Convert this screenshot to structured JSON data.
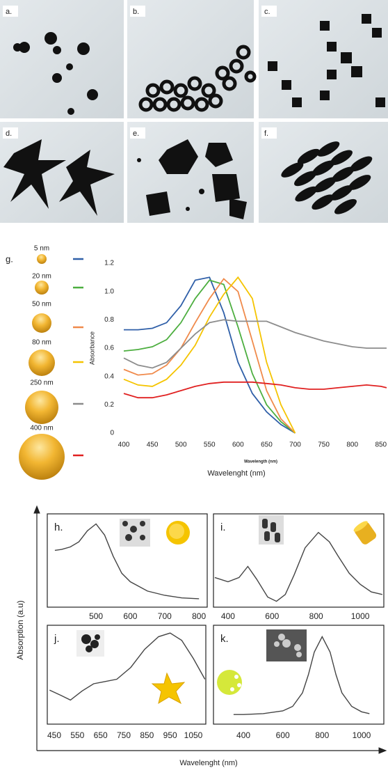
{
  "tem_panels": [
    "a.",
    "b.",
    "c.",
    "d.",
    "e.",
    "f."
  ],
  "figure": {
    "y_label": "Absorption (a.u)",
    "x_label": "Wavelenght (nm)"
  },
  "chart_data": [
    {
      "type": "line",
      "title": "g.",
      "x_label": "Wavelenght (nm)",
      "annotation": "Wavelength (nm)",
      "y_label": "Absorbance",
      "x": [
        400,
        425,
        450,
        475,
        500,
        525,
        550,
        575,
        600,
        625,
        650,
        675,
        700,
        725,
        750,
        775,
        800,
        825,
        850,
        860
      ],
      "xlim": [
        400,
        860
      ],
      "xticks": [
        400,
        450,
        500,
        550,
        600,
        650,
        700,
        750,
        800,
        850
      ],
      "ylim": [
        0,
        1.2
      ],
      "yticks": [
        0,
        0.2,
        0.4,
        0.6,
        0.8,
        {
          "value": 1,
          "label": "1.0"
        },
        1.2
      ],
      "series": [
        {
          "name": "5 nm",
          "color": "#2f5fa8",
          "values": [
            0.73,
            0.73,
            0.74,
            0.78,
            0.9,
            1.08,
            1.1,
            0.85,
            0.5,
            0.28,
            0.15,
            0.06,
            0,
            null,
            null,
            null,
            null,
            null,
            null,
            null
          ]
        },
        {
          "name": "20 nm",
          "color": "#4cae3f",
          "values": [
            0.58,
            0.59,
            0.61,
            0.66,
            0.78,
            0.95,
            1.08,
            1.05,
            0.75,
            0.42,
            0.2,
            0.08,
            0,
            null,
            null,
            null,
            null,
            null,
            null,
            null
          ]
        },
        {
          "name": "50 nm",
          "color": "#f08a4b",
          "values": [
            0.45,
            0.41,
            0.42,
            0.48,
            0.6,
            0.78,
            0.95,
            1.09,
            1.0,
            0.65,
            0.3,
            0.1,
            0,
            null,
            null,
            null,
            null,
            null,
            null,
            null
          ]
        },
        {
          "name": "80 nm",
          "color": "#f5c400",
          "values": [
            0.38,
            0.34,
            0.33,
            0.38,
            0.48,
            0.62,
            0.82,
            0.98,
            1.1,
            0.95,
            0.5,
            0.2,
            0,
            null,
            null,
            null,
            null,
            null,
            null,
            null
          ]
        },
        {
          "name": "250 nm",
          "color": "#8c8c8c",
          "values": [
            0.53,
            0.48,
            0.46,
            0.5,
            0.6,
            0.7,
            0.78,
            0.8,
            0.79,
            0.79,
            0.79,
            0.75,
            0.71,
            0.68,
            0.65,
            0.63,
            0.61,
            0.6,
            0.6,
            0.6
          ]
        },
        {
          "name": "400 nm",
          "color": "#e02020",
          "values": [
            0.28,
            0.25,
            0.25,
            0.27,
            0.3,
            0.33,
            0.35,
            0.36,
            0.36,
            0.36,
            0.35,
            0.34,
            0.32,
            0.31,
            0.31,
            0.32,
            0.33,
            0.34,
            0.33,
            0.32
          ]
        }
      ]
    },
    {
      "type": "line",
      "title": "h.",
      "color": "#444444",
      "xlim": [
        358,
        824
      ],
      "xticks": [
        500,
        600,
        700,
        800
      ],
      "ylim": [
        0,
        1
      ],
      "x": [
        380,
        400,
        425,
        450,
        475,
        500,
        525,
        550,
        575,
        600,
        650,
        700,
        750,
        800
      ],
      "values": [
        0.62,
        0.63,
        0.66,
        0.72,
        0.85,
        0.93,
        0.8,
        0.55,
        0.35,
        0.25,
        0.14,
        0.09,
        0.06,
        0.05
      ]
    },
    {
      "type": "line",
      "title": "i.",
      "color": "#444444",
      "xlim": [
        334,
        1107
      ],
      "xticks": [
        400,
        600,
        800,
        1000
      ],
      "ylim": [
        0,
        1
      ],
      "x": [
        340,
        400,
        450,
        490,
        530,
        580,
        620,
        660,
        700,
        750,
        810,
        860,
        900,
        950,
        1000,
        1050,
        1100
      ],
      "values": [
        0.3,
        0.25,
        0.3,
        0.43,
        0.28,
        0.07,
        0.02,
        0.1,
        0.33,
        0.65,
        0.83,
        0.72,
        0.55,
        0.35,
        0.22,
        0.13,
        0.1
      ]
    },
    {
      "type": "line",
      "title": "j.",
      "color": "#444444",
      "xlim": [
        420,
        1104
      ],
      "xticks": [
        450,
        550,
        650,
        750,
        850,
        950,
        1050
      ],
      "ylim": [
        0,
        1
      ],
      "x": [
        430,
        480,
        520,
        570,
        620,
        660,
        720,
        780,
        840,
        900,
        950,
        1000,
        1050,
        1100
      ],
      "values": [
        0.33,
        0.27,
        0.22,
        0.32,
        0.4,
        0.42,
        0.45,
        0.58,
        0.78,
        0.92,
        0.96,
        0.88,
        0.68,
        0.45
      ]
    },
    {
      "type": "line",
      "title": "k.",
      "color": "#444444",
      "xlim": [
        248,
        1113
      ],
      "xticks": [
        400,
        600,
        800,
        1000
      ],
      "ylim": [
        0,
        1
      ],
      "x": [
        350,
        400,
        500,
        600,
        650,
        700,
        730,
        760,
        800,
        840,
        870,
        900,
        950,
        1000,
        1040
      ],
      "values": [
        0.06,
        0.06,
        0.07,
        0.1,
        0.15,
        0.3,
        0.5,
        0.75,
        0.92,
        0.75,
        0.5,
        0.3,
        0.15,
        0.09,
        0.07
      ]
    }
  ]
}
